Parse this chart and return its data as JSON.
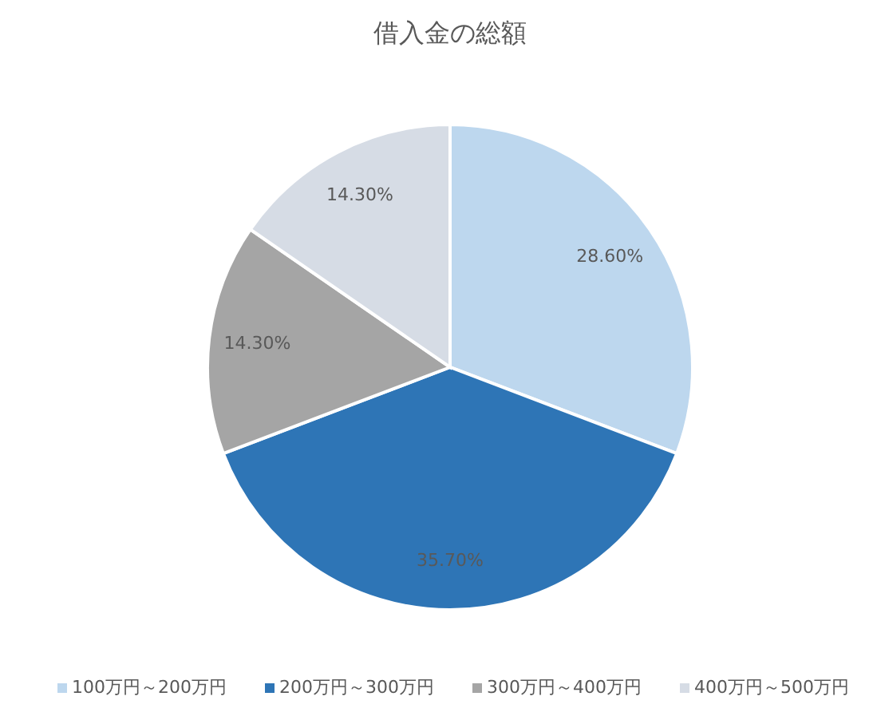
{
  "chart_data": {
    "type": "pie",
    "title": "借入金の総額",
    "categories": [
      "100万円～200万円",
      "200万円～300万円",
      "300万円～400万円",
      "400万円～500万円"
    ],
    "values": [
      28.6,
      35.7,
      14.3,
      14.3
    ],
    "value_labels": [
      "28.60%",
      "35.70%",
      "14.30%",
      "14.30%"
    ],
    "colors": [
      "#bdd7ee",
      "#2e75b6",
      "#a5a5a5",
      "#d6dce5"
    ],
    "legend": "bottom"
  }
}
